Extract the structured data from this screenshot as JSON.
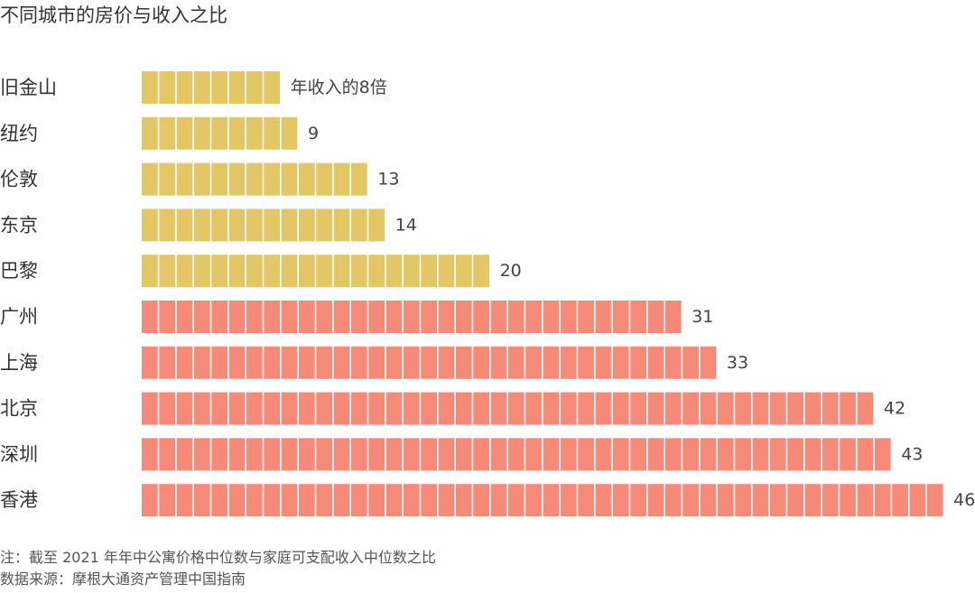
{
  "chart_data": {
    "type": "bar",
    "orientation": "horizontal",
    "title": "不同城市的房价与收入之比",
    "categories": [
      "旧金山",
      "纽约",
      "伦敦",
      "东京",
      "巴黎",
      "广州",
      "上海",
      "北京",
      "深圳",
      "香港"
    ],
    "values": [
      8,
      9,
      13,
      14,
      20,
      31,
      33,
      42,
      43,
      46
    ],
    "value_labels": [
      "年收入的8倍",
      "9",
      "13",
      "14",
      "20",
      "31",
      "33",
      "42",
      "43",
      "46"
    ],
    "groups": [
      {
        "categories": [
          "旧金山",
          "纽约",
          "伦敦",
          "东京",
          "巴黎"
        ],
        "color": "#e3c766"
      },
      {
        "categories": [
          "广州",
          "上海",
          "北京",
          "深圳",
          "香港"
        ],
        "color": "#f58a78"
      }
    ],
    "unit_style": "segmented"
  },
  "footnotes": {
    "note": "注：截至 2021 年年中公寓价格中位数与家庭可支配收入中位数之比",
    "source": "数据来源：摩根大通资产管理中国指南"
  }
}
